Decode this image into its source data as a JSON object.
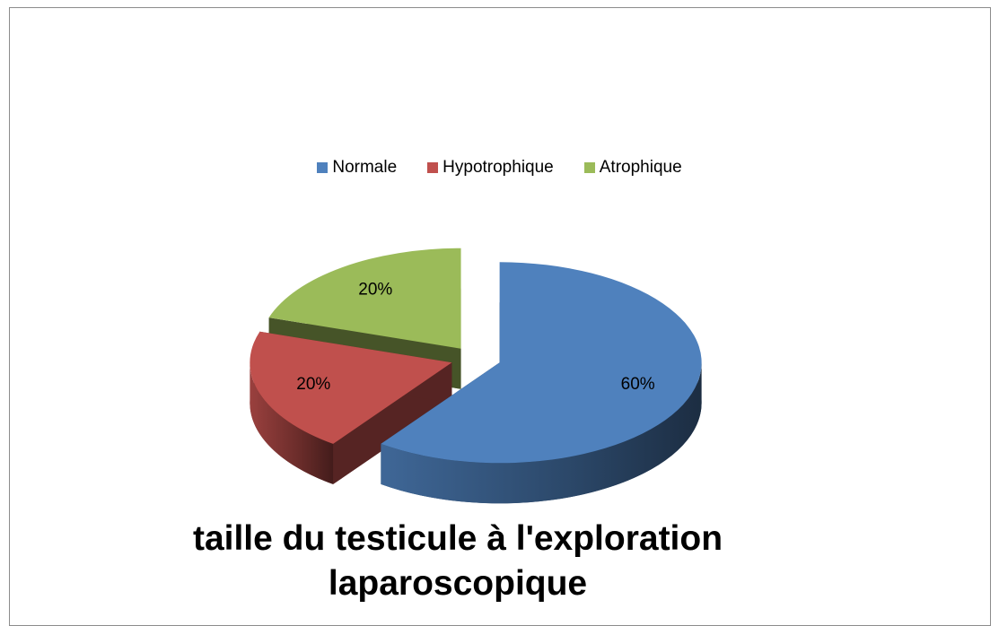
{
  "chart_data": {
    "type": "pie",
    "title": "taille du testicule à l'exploration laparoscopique",
    "categories": [
      "Normale",
      "Hypotrophique",
      "Atrophique"
    ],
    "values": [
      60,
      20,
      20
    ],
    "value_labels": [
      "60%",
      "20%",
      "20%"
    ],
    "colors": [
      "#4f81bd",
      "#c0504d",
      "#9bbb59"
    ],
    "legend": "top"
  }
}
